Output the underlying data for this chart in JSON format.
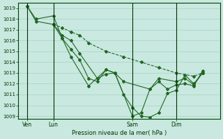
{
  "background_color": "#c8e8e0",
  "grid_color": "#a0ccbf",
  "line_color": "#226622",
  "marker_color": "#226622",
  "xlabel_text": "Pression niveau de la mer( hPa )",
  "ylim": [
    1008.75,
    1019.5
  ],
  "yticks": [
    1009,
    1010,
    1011,
    1012,
    1013,
    1014,
    1015,
    1016,
    1017,
    1018,
    1019
  ],
  "xtick_labels": [
    "Ven",
    "Lun",
    "Sam",
    "Dim"
  ],
  "xtick_positions": [
    0.5,
    2.0,
    6.5,
    9.0
  ],
  "xvlines": [
    0.5,
    2.0,
    6.5,
    9.0
  ],
  "xlim": [
    0,
    11.5
  ],
  "series": [
    {
      "x": [
        0.5,
        1.0,
        2.0,
        2.5,
        3.0,
        3.5,
        4.0,
        4.5,
        5.0,
        5.5,
        6.0,
        6.5,
        7.0,
        7.5,
        8.0,
        8.5,
        9.0,
        9.5,
        10.0,
        10.5
      ],
      "y": [
        1019.2,
        1018.0,
        1018.3,
        1016.2,
        1015.2,
        1014.2,
        1012.5,
        1012.2,
        1013.3,
        1013.0,
        1011.0,
        1009.8,
        1009.0,
        1008.9,
        1009.3,
        1011.1,
        1011.4,
        1012.8,
        1012.0,
        1013.0
      ],
      "linestyle": "-"
    },
    {
      "x": [
        0.5,
        1.0,
        2.0,
        2.5,
        3.0,
        4.0,
        5.0,
        5.5,
        6.5,
        7.0,
        7.5,
        8.0,
        8.5,
        9.0,
        9.5,
        10.0,
        10.5
      ],
      "y": [
        1019.2,
        1017.8,
        1017.5,
        1016.2,
        1014.5,
        1011.8,
        1013.3,
        1013.0,
        1009.0,
        1009.3,
        1011.5,
        1012.2,
        1011.5,
        1011.9,
        1012.0,
        1011.8,
        1013.2
      ],
      "linestyle": "-"
    },
    {
      "x": [
        2.0,
        2.5,
        3.0,
        3.5,
        4.5,
        5.0,
        5.5,
        6.0,
        7.5,
        8.0,
        9.0,
        9.5,
        10.0,
        10.5
      ],
      "y": [
        1017.5,
        1016.5,
        1016.0,
        1014.8,
        1012.5,
        1012.9,
        1013.0,
        1012.2,
        1011.5,
        1012.5,
        1012.2,
        1012.5,
        1011.9,
        1013.0
      ],
      "linestyle": "-"
    },
    {
      "x": [
        2.0,
        2.5,
        3.0,
        3.5,
        4.0,
        5.0,
        6.0,
        7.0,
        8.0,
        9.0,
        10.0,
        10.5
      ],
      "y": [
        1017.5,
        1017.2,
        1016.8,
        1016.5,
        1015.8,
        1015.0,
        1014.5,
        1014.0,
        1013.5,
        1013.0,
        1012.7,
        1013.0
      ],
      "linestyle": "--"
    }
  ]
}
